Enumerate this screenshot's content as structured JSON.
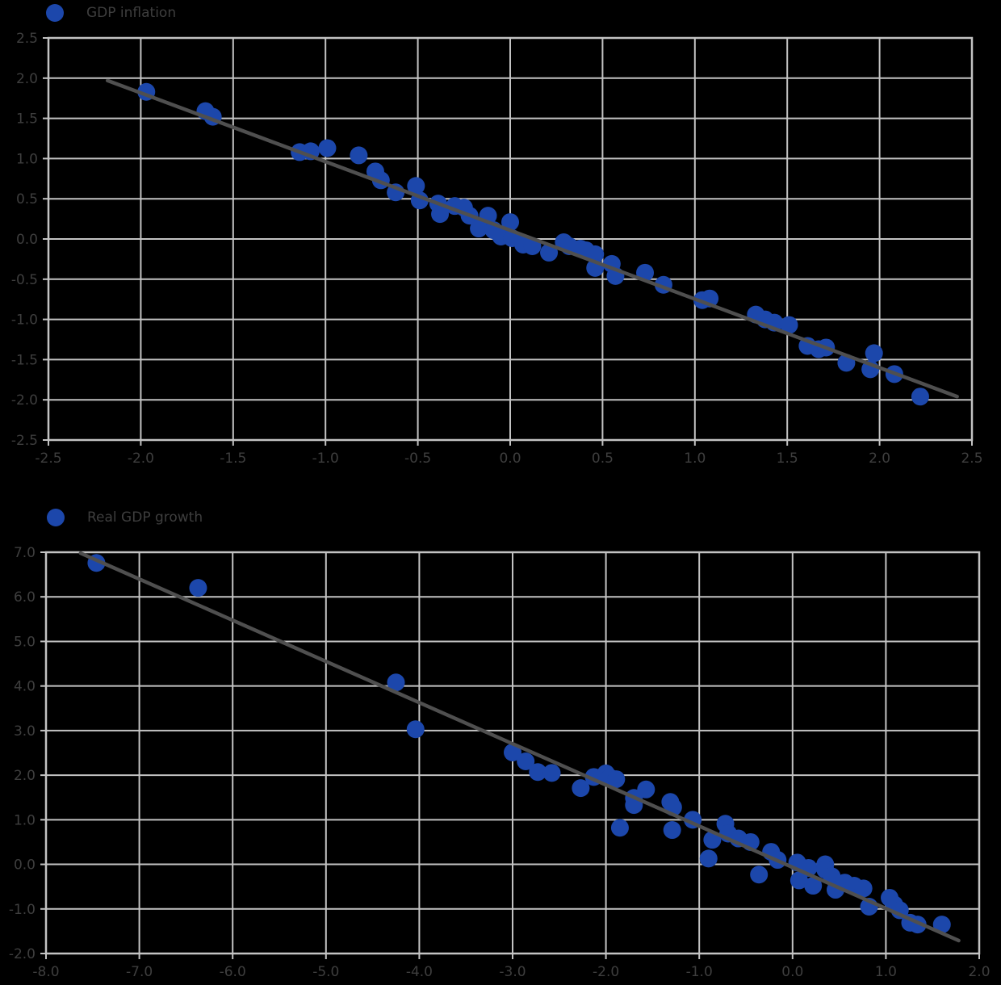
{
  "page": {
    "background": "#000000"
  },
  "colors": {
    "marker": "#1c47ab",
    "trendline": "#4f4f4f",
    "gridline": "#c3c3c3",
    "axis_text": "#3e3e3e",
    "legend_text": "#3e3e3e"
  },
  "chart_data": [
    {
      "type": "scatter",
      "legend": "GDP inflation",
      "title": "",
      "xlabel": "",
      "ylabel": "",
      "grid": true,
      "legend_position": "top-left",
      "xlim": [
        -2.5,
        2.5
      ],
      "ylim": [
        -2.5,
        2.5
      ],
      "xticks": [
        -2.5,
        -2.0,
        -1.5,
        -1.0,
        -0.5,
        0.0,
        0.5,
        1.0,
        1.5,
        2.0,
        2.5
      ],
      "yticks": [
        2.5,
        2.0,
        1.5,
        1.0,
        0.5,
        0.0,
        -0.5,
        -1.0,
        -1.5,
        -2.0,
        -2.5
      ],
      "tick_format": "one-decimal",
      "trendline": [
        [
          -2.18,
          1.97
        ],
        [
          2.42,
          -1.96
        ]
      ],
      "points": [
        [
          -1.97,
          1.83
        ],
        [
          -1.65,
          1.59
        ],
        [
          -1.61,
          1.52
        ],
        [
          -1.14,
          1.08
        ],
        [
          -1.08,
          1.09
        ],
        [
          -0.99,
          1.13
        ],
        [
          -0.82,
          1.04
        ],
        [
          -0.73,
          0.84
        ],
        [
          -0.7,
          0.73
        ],
        [
          -0.62,
          0.58
        ],
        [
          -0.51,
          0.66
        ],
        [
          -0.49,
          0.48
        ],
        [
          -0.39,
          0.44
        ],
        [
          -0.38,
          0.31
        ],
        [
          -0.3,
          0.41
        ],
        [
          -0.25,
          0.39
        ],
        [
          -0.22,
          0.29
        ],
        [
          -0.17,
          0.13
        ],
        [
          -0.12,
          0.29
        ],
        [
          -0.09,
          0.11
        ],
        [
          -0.05,
          0.03
        ],
        [
          0.0,
          0.21
        ],
        [
          0.01,
          0.01
        ],
        [
          0.07,
          -0.07
        ],
        [
          0.12,
          -0.09
        ],
        [
          0.21,
          -0.17
        ],
        [
          0.29,
          -0.04
        ],
        [
          0.32,
          -0.09
        ],
        [
          0.38,
          -0.12
        ],
        [
          0.41,
          -0.14
        ],
        [
          0.46,
          -0.19
        ],
        [
          0.46,
          -0.36
        ],
        [
          0.55,
          -0.31
        ],
        [
          0.57,
          -0.46
        ],
        [
          0.73,
          -0.42
        ],
        [
          0.83,
          -0.57
        ],
        [
          1.04,
          -0.76
        ],
        [
          1.08,
          -0.74
        ],
        [
          1.33,
          -0.94
        ],
        [
          1.38,
          -1.0
        ],
        [
          1.43,
          -1.04
        ],
        [
          1.51,
          -1.07
        ],
        [
          1.61,
          -1.33
        ],
        [
          1.67,
          -1.37
        ],
        [
          1.71,
          -1.35
        ],
        [
          1.82,
          -1.54
        ],
        [
          1.95,
          -1.62
        ],
        [
          1.97,
          -1.42
        ],
        [
          2.08,
          -1.68
        ],
        [
          2.22,
          -1.96
        ]
      ]
    },
    {
      "type": "scatter",
      "legend": "Real GDP growth",
      "title": "",
      "xlabel": "",
      "ylabel": "",
      "grid": true,
      "legend_position": "top-left",
      "xlim": [
        -8.0,
        2.0
      ],
      "ylim": [
        -2.0,
        7.0
      ],
      "xticks": [
        -8.0,
        -7.0,
        -6.0,
        -5.0,
        -4.0,
        -3.0,
        -2.0,
        -1.0,
        0.0,
        1.0,
        2.0
      ],
      "yticks": [
        7.0,
        6.0,
        5.0,
        4.0,
        3.0,
        2.0,
        1.0,
        0.0,
        -1.0,
        -2.0
      ],
      "tick_format": "one-decimal",
      "trendline": [
        [
          -7.63,
          6.98
        ],
        [
          1.78,
          -1.71
        ]
      ],
      "points": [
        [
          -7.46,
          6.76
        ],
        [
          -6.37,
          6.2
        ],
        [
          -4.25,
          4.08
        ],
        [
          -4.04,
          3.03
        ],
        [
          -3.0,
          2.51
        ],
        [
          -2.86,
          2.31
        ],
        [
          -2.73,
          2.07
        ],
        [
          -2.58,
          2.05
        ],
        [
          -2.27,
          1.71
        ],
        [
          -2.13,
          1.96
        ],
        [
          -2.0,
          2.04
        ],
        [
          -1.96,
          1.95
        ],
        [
          -1.89,
          1.91
        ],
        [
          -1.85,
          0.82
        ],
        [
          -1.7,
          1.49
        ],
        [
          -1.7,
          1.33
        ],
        [
          -1.57,
          1.68
        ],
        [
          -1.31,
          1.4
        ],
        [
          -1.29,
          0.77
        ],
        [
          -1.28,
          1.28
        ],
        [
          -1.07,
          1.0
        ],
        [
          -0.9,
          0.13
        ],
        [
          -0.86,
          0.55
        ],
        [
          -0.72,
          0.91
        ],
        [
          -0.69,
          0.69
        ],
        [
          -0.58,
          0.58
        ],
        [
          -0.45,
          0.5
        ],
        [
          -0.36,
          -0.23
        ],
        [
          -0.23,
          0.28
        ],
        [
          -0.16,
          0.1
        ],
        [
          0.05,
          0.04
        ],
        [
          0.07,
          -0.36
        ],
        [
          0.17,
          -0.08
        ],
        [
          0.22,
          -0.48
        ],
        [
          0.35,
          0.0
        ],
        [
          0.35,
          -0.12
        ],
        [
          0.42,
          -0.27
        ],
        [
          0.46,
          -0.57
        ],
        [
          0.56,
          -0.41
        ],
        [
          0.66,
          -0.48
        ],
        [
          0.76,
          -0.54
        ],
        [
          0.82,
          -0.95
        ],
        [
          1.04,
          -0.75
        ],
        [
          1.09,
          -0.9
        ],
        [
          1.15,
          -1.03
        ],
        [
          1.26,
          -1.31
        ],
        [
          1.34,
          -1.35
        ],
        [
          1.6,
          -1.35
        ]
      ]
    }
  ]
}
